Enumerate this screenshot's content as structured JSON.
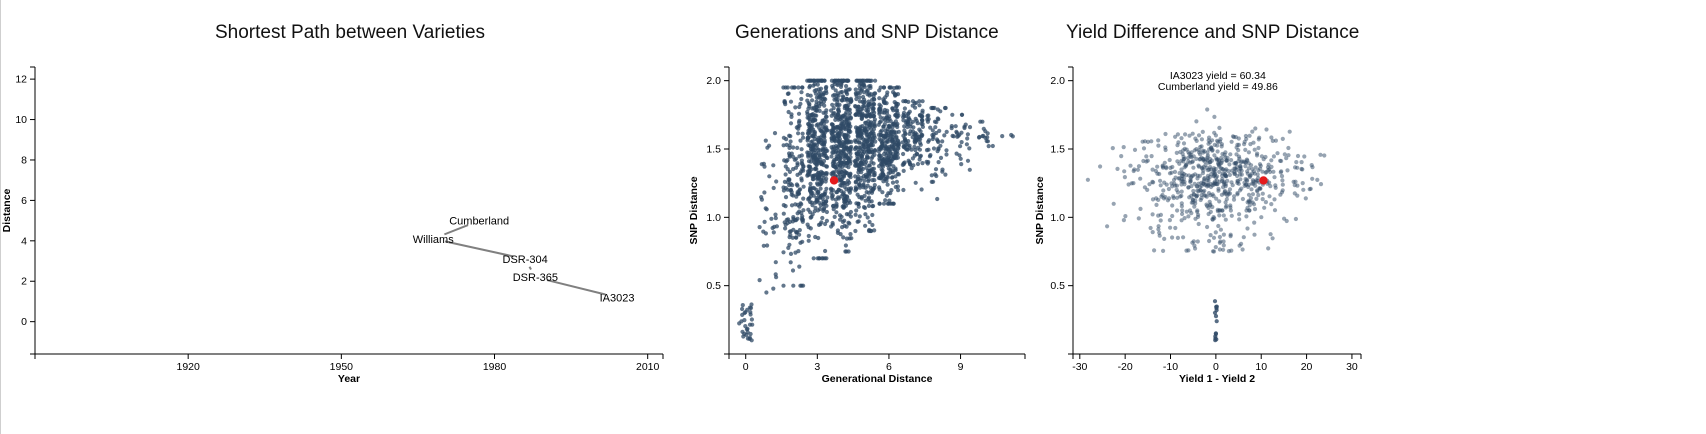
{
  "colors": {
    "point": "#2f4a66",
    "highlight": "#e41a1c",
    "edge": "#808080"
  },
  "chart_data": [
    {
      "type": "network",
      "title": "Shortest Path between Varieties",
      "xlabel": "Year",
      "ylabel": "Distance",
      "xlim": [
        1890,
        2013
      ],
      "ylim": [
        -1.6,
        12.6
      ],
      "xticks": [
        1920,
        1950,
        1980,
        2010
      ],
      "yticks": [
        0,
        2,
        4,
        6,
        8,
        10,
        12
      ],
      "nodes": [
        {
          "name": "Cumberland",
          "x": 1977,
          "y": 5.0
        },
        {
          "name": "Williams",
          "x": 1968,
          "y": 4.1
        },
        {
          "name": "DSR-304",
          "x": 1986,
          "y": 3.1
        },
        {
          "name": "DSR-365",
          "x": 1988,
          "y": 2.2
        },
        {
          "name": "IA3023",
          "x": 2004,
          "y": 1.2
        }
      ],
      "edges": [
        [
          "Cumberland",
          "Williams"
        ],
        [
          "Williams",
          "DSR-304"
        ],
        [
          "DSR-304",
          "DSR-365"
        ],
        [
          "DSR-365",
          "IA3023"
        ]
      ]
    },
    {
      "type": "scatter",
      "title": "Generations and SNP Distance",
      "xlabel": "Generational Distance",
      "ylabel": "SNP Distance",
      "xlim": [
        -0.7,
        11.7
      ],
      "ylim": [
        0,
        2.1
      ],
      "xticks": [
        0,
        3,
        6,
        9
      ],
      "yticks": [
        0.5,
        1.0,
        1.5,
        2.0
      ],
      "clusters": [
        {
          "x": 0,
          "n": 30,
          "ymin": 0.1,
          "ymax": 0.45,
          "ymean": 0.25
        },
        {
          "x": 1,
          "n": 35,
          "ymin": 0.45,
          "ymax": 1.7,
          "ymean": 1.05
        },
        {
          "x": 2,
          "n": 170,
          "ymin": 0.5,
          "ymax": 1.95,
          "ymean": 1.3
        },
        {
          "x": 3,
          "n": 380,
          "ymin": 0.7,
          "ymax": 2.0,
          "ymean": 1.45
        },
        {
          "x": 4,
          "n": 420,
          "ymin": 0.75,
          "ymax": 2.0,
          "ymean": 1.5
        },
        {
          "x": 5,
          "n": 380,
          "ymin": 0.9,
          "ymax": 2.0,
          "ymean": 1.52
        },
        {
          "x": 6,
          "n": 290,
          "ymin": 1.1,
          "ymax": 1.95,
          "ymean": 1.55
        },
        {
          "x": 7,
          "n": 130,
          "ymin": 1.2,
          "ymax": 1.85,
          "ymean": 1.58
        },
        {
          "x": 8,
          "n": 60,
          "ymin": 1.0,
          "ymax": 1.8,
          "ymean": 1.55
        },
        {
          "x": 9,
          "n": 30,
          "ymin": 1.25,
          "ymax": 1.75,
          "ymean": 1.57
        },
        {
          "x": 10,
          "n": 15,
          "ymin": 1.4,
          "ymax": 1.7,
          "ymean": 1.58
        },
        {
          "x": 11,
          "n": 3,
          "ymin": 1.58,
          "ymax": 1.62,
          "ymean": 1.6
        }
      ],
      "highlight": {
        "x": 3.7,
        "y": 1.27
      }
    },
    {
      "type": "scatter",
      "title": "Yield Difference and SNP Distance",
      "xlabel": "Yield 1 - Yield 2",
      "ylabel": "SNP Distance",
      "xlim": [
        -31.5,
        32
      ],
      "ylim": [
        0,
        2.1
      ],
      "xticks": [
        -30,
        -20,
        -10,
        0,
        10,
        20,
        30
      ],
      "yticks": [
        0.5,
        1.0,
        1.5,
        2.0
      ],
      "n_points": 700,
      "x_spread_sd": 8.5,
      "y_mean": 1.35,
      "center_column": {
        "x": 0,
        "ymin": 0.1,
        "ymax": 0.4
      },
      "highlight": {
        "x": 10.5,
        "y": 1.27
      },
      "annotations": [
        "IA3023 yield = 60.34",
        "Cumberland yield = 49.86"
      ]
    }
  ]
}
